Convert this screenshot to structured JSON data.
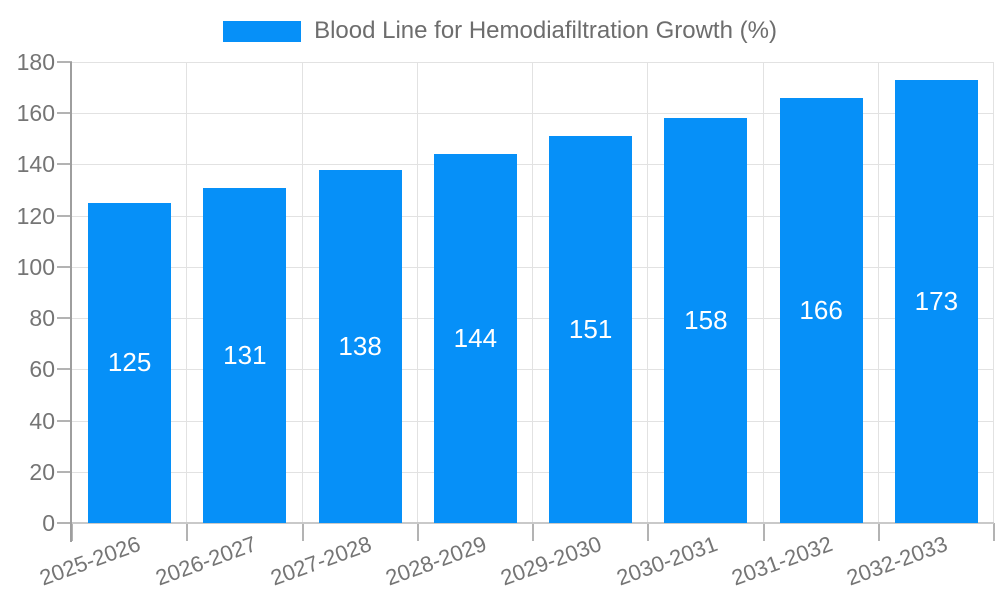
{
  "chart_data": {
    "type": "bar",
    "title": "Blood Line for Hemodiafiltration Growth (%)",
    "legend": {
      "label": "Blood Line for Hemodiafiltration Growth (%)",
      "position": "top"
    },
    "categories": [
      "2025-2026",
      "2026-2027",
      "2027-2028",
      "2028-2029",
      "2029-2030",
      "2030-2031",
      "2031-2032",
      "2032-2033"
    ],
    "series": [
      {
        "name": "Blood Line for Hemodiafiltration Growth (%)",
        "values": [
          125,
          131,
          138,
          144,
          151,
          158,
          166,
          173
        ]
      }
    ],
    "xlabel": "",
    "ylabel": "",
    "ylim": [
      0,
      180
    ],
    "ytick_step": 20,
    "yticks": [
      0,
      20,
      40,
      60,
      80,
      100,
      120,
      140,
      160,
      180
    ],
    "grid": true,
    "x_label_rotation_deg": -20,
    "colors": {
      "bar": "#0690f8",
      "value_label": "#ffffff",
      "axis_text": "#757575",
      "title_text": "#6d6d6d",
      "grid": "#e2e2e2",
      "axis_line": "#9e9e9e",
      "tick": "#b3b3b3",
      "baseline": "#c9c9c9",
      "background": "#ffffff"
    }
  }
}
